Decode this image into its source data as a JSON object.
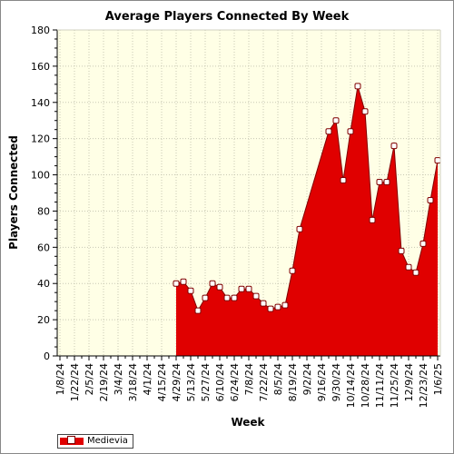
{
  "chart_data": {
    "type": "area",
    "title": "Average Players Connected By Week",
    "xlabel": "Week",
    "ylabel": "Players Connected",
    "ylim": [
      0,
      180
    ],
    "yticks": [
      0,
      20,
      40,
      60,
      80,
      100,
      120,
      140,
      160,
      180
    ],
    "x_tick_labels": [
      "1/8/24",
      "1/22/24",
      "2/5/24",
      "2/19/24",
      "3/4/24",
      "3/18/24",
      "4/1/24",
      "4/15/24",
      "4/29/24",
      "5/13/24",
      "5/27/24",
      "6/10/24",
      "6/24/24",
      "7/8/24",
      "7/22/24",
      "8/5/24",
      "8/19/24",
      "9/2/24",
      "9/16/24",
      "9/30/24",
      "10/14/24",
      "10/28/24",
      "11/11/24",
      "11/25/24",
      "12/9/24",
      "12/23/24",
      "1/6/25"
    ],
    "grid": true,
    "legend_position": "bottom-left",
    "background_color": "#ffffe6",
    "series": [
      {
        "name": "Medievia",
        "color": "#e00000",
        "points": [
          {
            "x": "4/29/24",
            "y": 40
          },
          {
            "x": "5/6/24",
            "y": 41
          },
          {
            "x": "5/13/24",
            "y": 36
          },
          {
            "x": "5/20/24",
            "y": 25
          },
          {
            "x": "5/27/24",
            "y": 32
          },
          {
            "x": "6/3/24",
            "y": 40
          },
          {
            "x": "6/10/24",
            "y": 38
          },
          {
            "x": "6/17/24",
            "y": 32
          },
          {
            "x": "6/24/24",
            "y": 32
          },
          {
            "x": "7/1/24",
            "y": 37
          },
          {
            "x": "7/8/24",
            "y": 37
          },
          {
            "x": "7/15/24",
            "y": 33
          },
          {
            "x": "7/22/24",
            "y": 29
          },
          {
            "x": "7/29/24",
            "y": 26
          },
          {
            "x": "8/5/24",
            "y": 27
          },
          {
            "x": "8/12/24",
            "y": 28
          },
          {
            "x": "8/19/24",
            "y": 47
          },
          {
            "x": "8/26/24",
            "y": 70
          },
          {
            "x": "9/23/24",
            "y": 124
          },
          {
            "x": "9/30/24",
            "y": 130
          },
          {
            "x": "10/7/24",
            "y": 97
          },
          {
            "x": "10/14/24",
            "y": 124
          },
          {
            "x": "10/21/24",
            "y": 149
          },
          {
            "x": "10/28/24",
            "y": 135
          },
          {
            "x": "11/4/24",
            "y": 75
          },
          {
            "x": "11/11/24",
            "y": 96
          },
          {
            "x": "11/18/24",
            "y": 96
          },
          {
            "x": "11/25/24",
            "y": 116
          },
          {
            "x": "12/2/24",
            "y": 58
          },
          {
            "x": "12/9/24",
            "y": 49
          },
          {
            "x": "12/16/24",
            "y": 46
          },
          {
            "x": "12/23/24",
            "y": 62
          },
          {
            "x": "12/30/24",
            "y": 86
          },
          {
            "x": "1/6/25",
            "y": 108
          }
        ]
      }
    ]
  }
}
